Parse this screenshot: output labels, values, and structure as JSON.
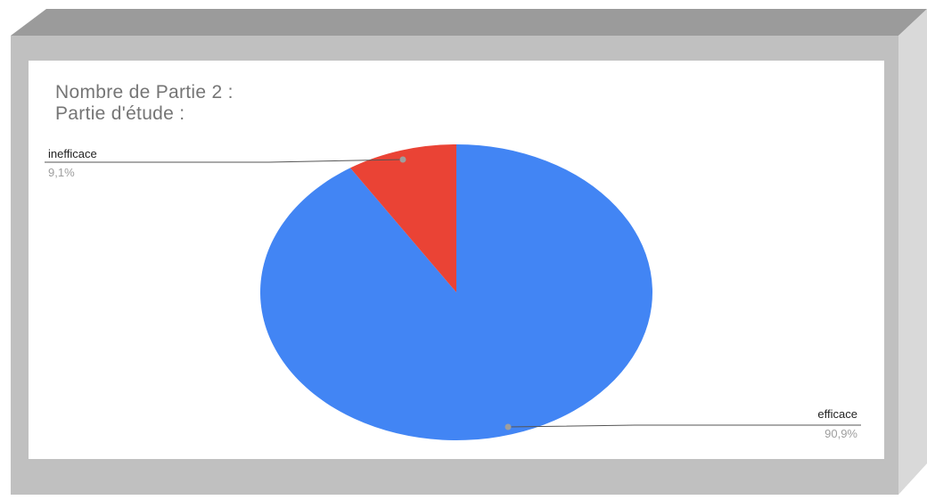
{
  "chart_title": {
    "line1": "Nombre de Partie 2 :",
    "line2": "Partie d'étude :"
  },
  "colors": {
    "frame": "#c0c0c0",
    "frame_top": "#9b9b9b",
    "frame_side": "#d9d9d9",
    "card": "#ffffff",
    "leader": "#555555",
    "leader_dot": "#9e9e9e"
  },
  "chart_data": {
    "type": "pie",
    "title": "Nombre de Partie 2 : Partie d'étude :",
    "start_angle_deg": 0,
    "direction": "clockwise",
    "slices": [
      {
        "label": "efficace",
        "value": 90.9,
        "display": "90,9%",
        "color": "#4285f4"
      },
      {
        "label": "inefficace",
        "value": 9.1,
        "display": "9,1%",
        "color": "#ea4335"
      }
    ],
    "labels_position": "outside-with-leader-lines",
    "legend": "none"
  }
}
